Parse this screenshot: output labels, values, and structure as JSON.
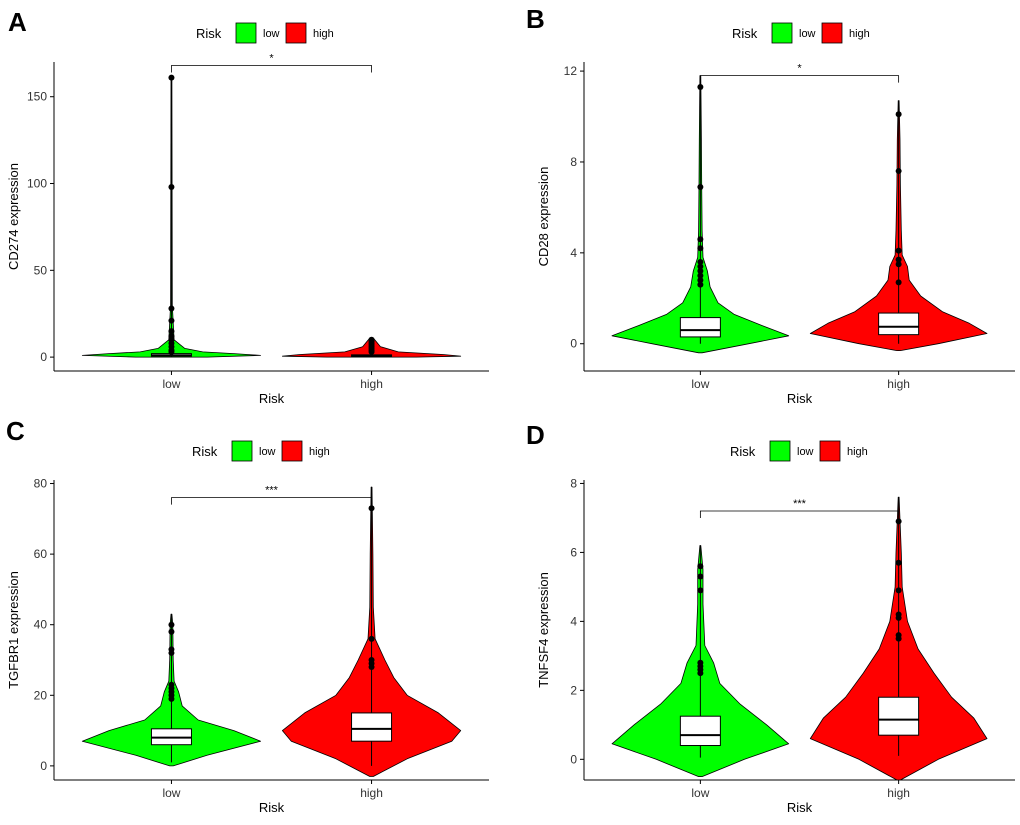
{
  "figure": {
    "panels": [
      {
        "letter": "A",
        "legend_title": "Risk",
        "legend_items": [
          "low",
          "high"
        ]
      },
      {
        "letter": "B",
        "legend_title": "Risk",
        "legend_items": [
          "low",
          "high"
        ]
      },
      {
        "letter": "C",
        "legend_title": "Risk",
        "legend_items": [
          "low",
          "high"
        ]
      },
      {
        "letter": "D",
        "legend_title": "Risk",
        "legend_items": [
          "low",
          "high"
        ]
      }
    ]
  },
  "colors": {
    "low": "#00ff00",
    "high": "#ff0000",
    "line": "#000000",
    "box": "#ffffff"
  },
  "chart_data": [
    {
      "type": "violin",
      "panel": "A",
      "categories": [
        "low",
        "high"
      ],
      "xlabel": "Risk",
      "ylabel": "CD274 expression",
      "ylim": [
        -8,
        170
      ],
      "yticks": [
        0,
        50,
        100,
        150
      ],
      "yticklabels": [
        "0",
        "50",
        "100",
        "150"
      ],
      "significance": "*",
      "bracket_y": 168,
      "series": [
        {
          "name": "low",
          "min": 0,
          "max": 161,
          "q1": 0.5,
          "median": 1.0,
          "q3": 2.0,
          "outliers": [
            3,
            4,
            6,
            8,
            10,
            12,
            15,
            21,
            28,
            98,
            161
          ],
          "violin_profile": [
            [
              0,
              0.4
            ],
            [
              1,
              1.0
            ],
            [
              2,
              0.7
            ],
            [
              3,
              0.35
            ],
            [
              5,
              0.15
            ],
            [
              10,
              0.03
            ],
            [
              30,
              0.01
            ],
            [
              161,
              0.005
            ]
          ]
        },
        {
          "name": "high",
          "min": 0,
          "max": 11,
          "q1": 0.3,
          "median": 0.7,
          "q3": 1.3,
          "outliers": [
            3,
            4,
            5,
            6,
            7,
            8,
            9,
            10
          ],
          "violin_profile": [
            [
              0,
              0.5
            ],
            [
              0.5,
              1.0
            ],
            [
              1.5,
              0.8
            ],
            [
              3,
              0.3
            ],
            [
              6,
              0.1
            ],
            [
              11,
              0.02
            ]
          ]
        }
      ]
    },
    {
      "type": "violin",
      "panel": "B",
      "categories": [
        "low",
        "high"
      ],
      "xlabel": "Risk",
      "ylabel": "CD28 expression",
      "ylim": [
        -1.2,
        12.4
      ],
      "yticks": [
        0,
        4,
        8,
        12
      ],
      "yticklabels": [
        "0",
        "4",
        "8",
        "12"
      ],
      "significance": "*",
      "bracket_y": 11.8,
      "series": [
        {
          "name": "low",
          "min": 0,
          "max": 11.8,
          "q1": 0.3,
          "median": 0.6,
          "q3": 1.15,
          "outliers": [
            2.6,
            2.8,
            3.0,
            3.2,
            3.4,
            3.6,
            4.2,
            4.6,
            6.9,
            11.3
          ],
          "violin_profile": [
            [
              -0.4,
              0.02
            ],
            [
              0,
              0.55
            ],
            [
              0.35,
              1.0
            ],
            [
              0.8,
              0.7
            ],
            [
              1.3,
              0.38
            ],
            [
              1.8,
              0.2
            ],
            [
              2.5,
              0.11
            ],
            [
              3.2,
              0.08
            ],
            [
              3.8,
              0.03
            ],
            [
              5,
              0.02
            ],
            [
              7,
              0.015
            ],
            [
              9,
              0.012
            ],
            [
              11.8,
              0.005
            ]
          ]
        },
        {
          "name": "high",
          "min": 0,
          "max": 10.7,
          "q1": 0.4,
          "median": 0.75,
          "q3": 1.35,
          "outliers": [
            2.7,
            3.5,
            3.7,
            4.1,
            7.6,
            10.1
          ],
          "violin_profile": [
            [
              -0.3,
              0.02
            ],
            [
              0,
              0.45
            ],
            [
              0.45,
              1.0
            ],
            [
              0.9,
              0.8
            ],
            [
              1.4,
              0.5
            ],
            [
              2.1,
              0.25
            ],
            [
              2.8,
              0.12
            ],
            [
              3.4,
              0.1
            ],
            [
              3.9,
              0.04
            ],
            [
              5,
              0.03
            ],
            [
              7,
              0.02
            ],
            [
              9,
              0.015
            ],
            [
              10.7,
              0.005
            ]
          ]
        }
      ]
    },
    {
      "type": "violin",
      "panel": "C",
      "categories": [
        "low",
        "high"
      ],
      "xlabel": "Risk",
      "ylabel": "TGFBR1 expression",
      "ylim": [
        -4,
        81
      ],
      "yticks": [
        0,
        20,
        40,
        60,
        80
      ],
      "yticklabels": [
        "0",
        "20",
        "40",
        "60",
        "80"
      ],
      "significance": "***",
      "bracket_y": 76,
      "series": [
        {
          "name": "low",
          "min": 1,
          "max": 43,
          "q1": 6,
          "median": 8,
          "q3": 10.5,
          "outliers": [
            19,
            20,
            21,
            22,
            23,
            32,
            33,
            38,
            40
          ],
          "violin_profile": [
            [
              0,
              0.02
            ],
            [
              3,
              0.4
            ],
            [
              7,
              1.0
            ],
            [
              10,
              0.7
            ],
            [
              13,
              0.3
            ],
            [
              17,
              0.12
            ],
            [
              21,
              0.08
            ],
            [
              24,
              0.03
            ],
            [
              30,
              0.02
            ],
            [
              40,
              0.015
            ],
            [
              43,
              0.005
            ]
          ]
        },
        {
          "name": "high",
          "min": 0,
          "max": 79,
          "q1": 7,
          "median": 10.5,
          "q3": 15,
          "outliers": [
            28,
            29,
            30,
            36,
            73
          ],
          "violin_profile": [
            [
              -3,
              0.02
            ],
            [
              2,
              0.4
            ],
            [
              7,
              0.9
            ],
            [
              10,
              1.0
            ],
            [
              15,
              0.75
            ],
            [
              20,
              0.4
            ],
            [
              25,
              0.25
            ],
            [
              30,
              0.15
            ],
            [
              36,
              0.04
            ],
            [
              45,
              0.02
            ],
            [
              60,
              0.015
            ],
            [
              79,
              0.005
            ]
          ]
        }
      ]
    },
    {
      "type": "violin",
      "panel": "D",
      "categories": [
        "low",
        "high"
      ],
      "xlabel": "Risk",
      "ylabel": "TNFSF4 expression",
      "ylim": [
        -0.6,
        8.1
      ],
      "yticks": [
        0,
        2,
        4,
        6,
        8
      ],
      "yticklabels": [
        "0",
        "2",
        "4",
        "6",
        "8"
      ],
      "significance": "***",
      "bracket_y": 7.2,
      "series": [
        {
          "name": "low",
          "min": 0.05,
          "max": 6.2,
          "q1": 0.4,
          "median": 0.7,
          "q3": 1.25,
          "outliers": [
            2.5,
            2.6,
            2.7,
            2.8,
            4.9,
            5.3,
            5.6
          ],
          "violin_profile": [
            [
              -0.5,
              0.02
            ],
            [
              0,
              0.5
            ],
            [
              0.45,
              1.0
            ],
            [
              1.0,
              0.75
            ],
            [
              1.6,
              0.45
            ],
            [
              2.2,
              0.22
            ],
            [
              2.8,
              0.15
            ],
            [
              3.3,
              0.05
            ],
            [
              4.5,
              0.03
            ],
            [
              5.5,
              0.03
            ],
            [
              6.2,
              0.005
            ]
          ]
        },
        {
          "name": "high",
          "min": 0.1,
          "max": 7.6,
          "q1": 0.7,
          "median": 1.15,
          "q3": 1.8,
          "outliers": [
            3.5,
            3.6,
            4.1,
            4.2,
            4.9,
            5.7,
            6.9
          ],
          "violin_profile": [
            [
              -0.6,
              0.02
            ],
            [
              0,
              0.45
            ],
            [
              0.6,
              1.0
            ],
            [
              1.2,
              0.85
            ],
            [
              1.8,
              0.6
            ],
            [
              2.5,
              0.4
            ],
            [
              3.2,
              0.22
            ],
            [
              4.0,
              0.1
            ],
            [
              5,
              0.04
            ],
            [
              6,
              0.03
            ],
            [
              7.6,
              0.005
            ]
          ]
        }
      ]
    }
  ]
}
